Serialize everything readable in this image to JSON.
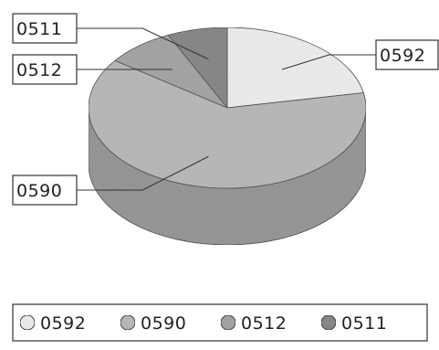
{
  "chart_data": {
    "type": "pie",
    "style": "3d",
    "categories": [
      "0592",
      "0590",
      "0512",
      "0511"
    ],
    "values": [
      22,
      63,
      8,
      7
    ],
    "title": "",
    "legend": "bottom",
    "colors": {
      "0592": "#f2f2f2",
      "0590": "#bdbdbd",
      "0512": "#a9a9a9",
      "0511": "#8c8c8c"
    }
  }
}
